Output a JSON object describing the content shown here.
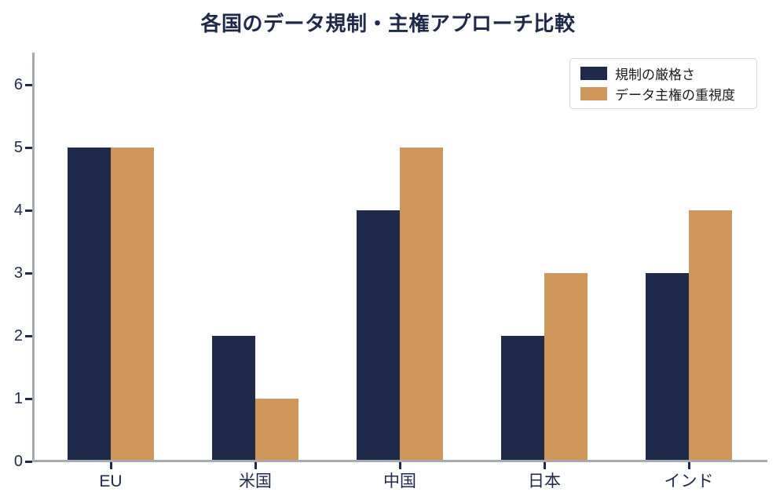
{
  "title": "各国のデータ規制・主権アプローチ比較",
  "colors": {
    "series1": "#1f2a4a",
    "series2": "#cf975c",
    "axis_text": "#1f2a4a",
    "spine": "#a6abb3",
    "legend_border": "#d6d6d6",
    "legend_text": "#1a1a1a",
    "background": "#ffffff"
  },
  "chart_data": {
    "type": "bar",
    "title": "各国のデータ規制・主権アプローチ比較",
    "categories": [
      "EU",
      "米国",
      "中国",
      "日本",
      "インド"
    ],
    "series": [
      {
        "name": "規制の厳格さ",
        "color": "#1f2a4a",
        "values": [
          5,
          2,
          4,
          2,
          3
        ]
      },
      {
        "name": "データ主権の重視度",
        "color": "#cf975c",
        "values": [
          5,
          1,
          5,
          3,
          4
        ]
      }
    ],
    "xlabel": "",
    "ylabel": "",
    "ylim": [
      0,
      6.5
    ],
    "yticks": [
      0,
      1,
      2,
      3,
      4,
      5,
      6
    ],
    "grid": false,
    "legend_position": "upper right"
  }
}
